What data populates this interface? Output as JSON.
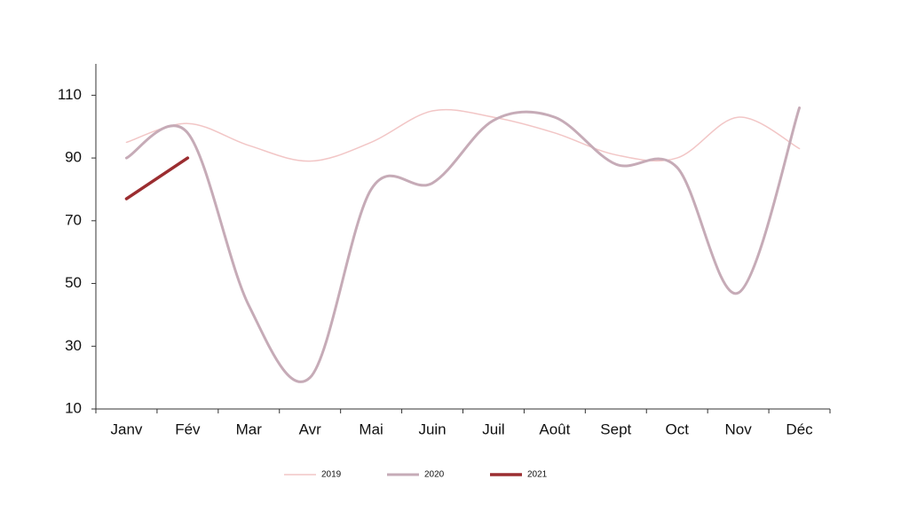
{
  "chart_data": {
    "type": "line",
    "categories": [
      "Janv",
      "Fév",
      "Mar",
      "Avr",
      "Mai",
      "Juin",
      "Juil",
      "Août",
      "Sept",
      "Oct",
      "Nov",
      "Déc"
    ],
    "series": [
      {
        "name": "2019",
        "color": "#f2c6c6",
        "values": [
          95,
          101,
          94,
          89,
          95,
          105,
          103,
          98,
          91,
          90,
          103,
          93
        ]
      },
      {
        "name": "2020",
        "color": "#c6abb7",
        "values": [
          90,
          98,
          43,
          20,
          80,
          82,
          102,
          103,
          88,
          87,
          47,
          106
        ]
      },
      {
        "name": "2021",
        "color": "#9b2d30",
        "values": [
          77,
          90,
          null,
          null,
          null,
          null,
          null,
          null,
          null,
          null,
          null,
          null
        ]
      }
    ],
    "ylim": [
      10,
      120
    ],
    "yticks": [
      10,
      30,
      50,
      70,
      90,
      110
    ],
    "grid": false,
    "legend": "bottom"
  }
}
